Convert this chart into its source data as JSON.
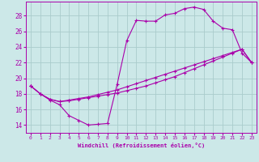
{
  "bg_color": "#cce8e8",
  "grid_color": "#aacccc",
  "line_color": "#aa00aa",
  "marker": "+",
  "xlabel": "Windchill (Refroidissement éolien,°C)",
  "xlim": [
    -0.5,
    23.5
  ],
  "ylim": [
    13.0,
    29.8
  ],
  "yticks": [
    14,
    16,
    18,
    20,
    22,
    24,
    26,
    28
  ],
  "line1_x": [
    0,
    1,
    2,
    3,
    4,
    5,
    6,
    7,
    8,
    9,
    10,
    11,
    12,
    13,
    14,
    15,
    16,
    17,
    18,
    19,
    20,
    21,
    22,
    23
  ],
  "line1_y": [
    19.0,
    18.0,
    17.2,
    16.6,
    15.2,
    14.6,
    14.0,
    14.1,
    14.2,
    19.2,
    24.8,
    27.4,
    27.3,
    27.3,
    28.1,
    28.3,
    28.9,
    29.1,
    28.8,
    27.3,
    26.4,
    26.2,
    23.2,
    22.0
  ],
  "line2_x": [
    0,
    1,
    2,
    3,
    4,
    5,
    6,
    7,
    8,
    9,
    10,
    11,
    12,
    13,
    14,
    15,
    16,
    17,
    18,
    19,
    20,
    21,
    22,
    23
  ],
  "line2_y": [
    19.0,
    18.0,
    17.3,
    17.0,
    17.1,
    17.3,
    17.5,
    17.7,
    17.9,
    18.1,
    18.4,
    18.7,
    19.0,
    19.4,
    19.8,
    20.2,
    20.7,
    21.2,
    21.7,
    22.2,
    22.7,
    23.2,
    23.7,
    22.0
  ],
  "line3_x": [
    0,
    1,
    2,
    3,
    4,
    5,
    6,
    7,
    8,
    9,
    10,
    11,
    12,
    13,
    14,
    15,
    16,
    17,
    18,
    19,
    20,
    21,
    22,
    23
  ],
  "line3_y": [
    19.0,
    18.0,
    17.3,
    17.0,
    17.2,
    17.4,
    17.6,
    17.9,
    18.2,
    18.5,
    18.9,
    19.3,
    19.7,
    20.1,
    20.5,
    20.9,
    21.3,
    21.7,
    22.1,
    22.5,
    22.9,
    23.3,
    23.7,
    22.0
  ]
}
